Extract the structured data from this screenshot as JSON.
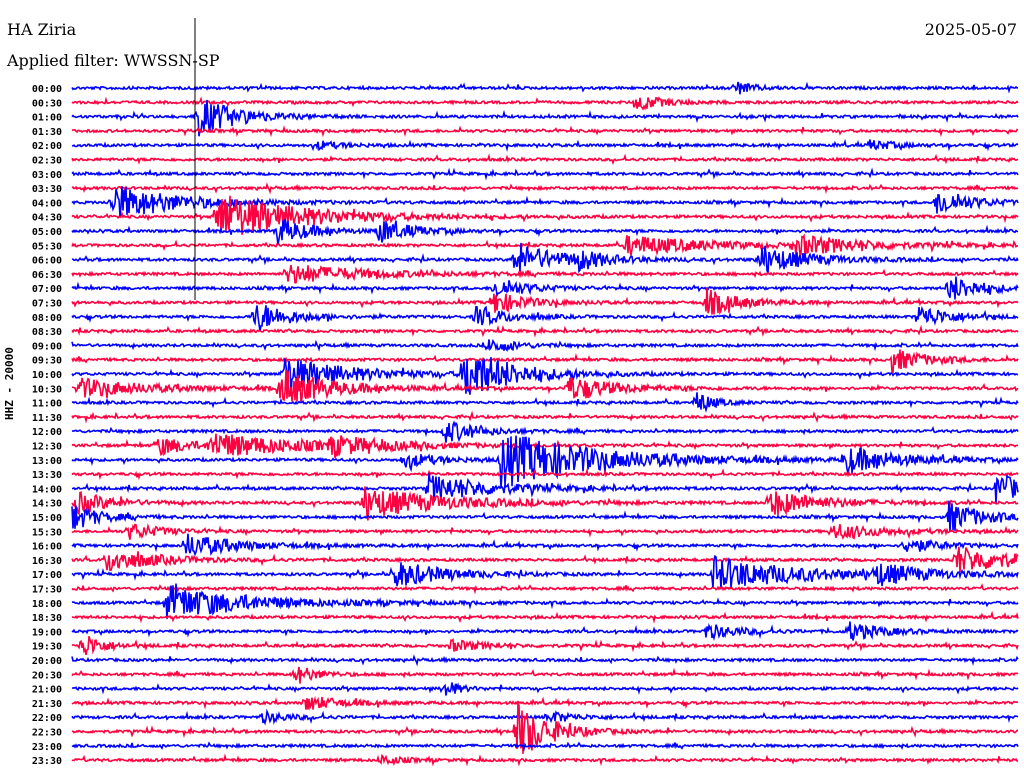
{
  "header": {
    "station": "HA Ziria",
    "filter": "Applied filter: WWSSN-SP",
    "date": "2025-05-07"
  },
  "chart_data": {
    "type": "line",
    "title": "HA Ziria",
    "subtitle": "Applied filter: WWSSN-SP",
    "ylabel": "HHZ - 20000",
    "row_minutes": 30,
    "colors": {
      "hour": "#0000ff",
      "half_hour": "#ff0040",
      "marker": "#000000"
    },
    "tick_labels": [
      "00:00",
      "00:30",
      "01:00",
      "01:30",
      "02:00",
      "02:30",
      "03:00",
      "03:30",
      "04:00",
      "04:30",
      "05:00",
      "05:30",
      "06:00",
      "06:30",
      "07:00",
      "07:30",
      "08:00",
      "08:30",
      "09:00",
      "09:30",
      "10:00",
      "10:30",
      "11:00",
      "11:30",
      "12:00",
      "12:30",
      "13:00",
      "13:30",
      "14:00",
      "14:30",
      "15:00",
      "15:30",
      "16:00",
      "16:30",
      "17:00",
      "17:30",
      "18:00",
      "18:30",
      "19:00",
      "19:30",
      "20:00",
      "20:30",
      "21:00",
      "21:30",
      "22:00",
      "22:30",
      "23:00",
      "23:30"
    ],
    "events_note": "[row, minute within row, amplitude (relative), duration (min)]",
    "events": [
      [
        0,
        21,
        8,
        0.5
      ],
      [
        1,
        17.9,
        8,
        0.8
      ],
      [
        2,
        4.0,
        20,
        1.2
      ],
      [
        4,
        7.8,
        4,
        0.8
      ],
      [
        4,
        25.3,
        5,
        0.8
      ],
      [
        8,
        1.3,
        18,
        2
      ],
      [
        8,
        27.4,
        14,
        1
      ],
      [
        9,
        4.6,
        25,
        2.5
      ],
      [
        10,
        6.5,
        14,
        1
      ],
      [
        10,
        9.7,
        12,
        1
      ],
      [
        11,
        17.6,
        10,
        2.5
      ],
      [
        11,
        22.9,
        10,
        2
      ],
      [
        12,
        14.0,
        16,
        1.5
      ],
      [
        12,
        21.8,
        14,
        1.5
      ],
      [
        12,
        16,
        8,
        0.8
      ],
      [
        13,
        6.8,
        10,
        2.5
      ],
      [
        14,
        13.4,
        10,
        1
      ],
      [
        14,
        27.8,
        14,
        1
      ],
      [
        15,
        13.3,
        12,
        1
      ],
      [
        15,
        20.1,
        14,
        1
      ],
      [
        16,
        5.8,
        16,
        1
      ],
      [
        16,
        12.8,
        10,
        1
      ],
      [
        16,
        26.8,
        12,
        1
      ],
      [
        18,
        13.2,
        8,
        0.8
      ],
      [
        19,
        26.0,
        12,
        1
      ],
      [
        20,
        12.4,
        28,
        1.5
      ],
      [
        20,
        6.7,
        18,
        2
      ],
      [
        21,
        0.2,
        10,
        2
      ],
      [
        21,
        6.6,
        20,
        1.5
      ],
      [
        21,
        15.7,
        12,
        1.5
      ],
      [
        22,
        19.8,
        12,
        0.5
      ],
      [
        24,
        11.8,
        12,
        1
      ],
      [
        25,
        2.7,
        10,
        1
      ],
      [
        25,
        4.4,
        12,
        3
      ],
      [
        25,
        8.2,
        8,
        1.5
      ],
      [
        26,
        13.6,
        28,
        3
      ],
      [
        26,
        24.5,
        14,
        1.5
      ],
      [
        26,
        10.5,
        8,
        1
      ],
      [
        28,
        11.3,
        14,
        2
      ],
      [
        28,
        29.3,
        16,
        1
      ],
      [
        29,
        0.1,
        12,
        1
      ],
      [
        29,
        9.2,
        16,
        2.5
      ],
      [
        29,
        22.1,
        14,
        1.5
      ],
      [
        30,
        0,
        14,
        0.8
      ],
      [
        30,
        27.8,
        16,
        1
      ],
      [
        31,
        1.8,
        8,
        1
      ],
      [
        31,
        24.1,
        8,
        1.5
      ],
      [
        32,
        3.6,
        12,
        1.5
      ],
      [
        32,
        26.4,
        8,
        1
      ],
      [
        33,
        1.1,
        12,
        1.5
      ],
      [
        33,
        28.0,
        14,
        2
      ],
      [
        34,
        10.2,
        14,
        1.5
      ],
      [
        34,
        20.3,
        18,
        2.5
      ],
      [
        34,
        25.5,
        10,
        1.5
      ],
      [
        36,
        3.0,
        18,
        2.5
      ],
      [
        38,
        20.1,
        8,
        1
      ],
      [
        38,
        24.6,
        10,
        1
      ],
      [
        39,
        0.3,
        14,
        0.6
      ],
      [
        39,
        12,
        6,
        1
      ],
      [
        41,
        7.1,
        10,
        0.6
      ],
      [
        42,
        11.8,
        10,
        0.4
      ],
      [
        43,
        7.4,
        8,
        1
      ],
      [
        44,
        6.0,
        6,
        0.8
      ],
      [
        44,
        15.1,
        6,
        0.8
      ],
      [
        45,
        14.1,
        30,
        1
      ],
      [
        47,
        9.8,
        6,
        0.5
      ]
    ]
  }
}
